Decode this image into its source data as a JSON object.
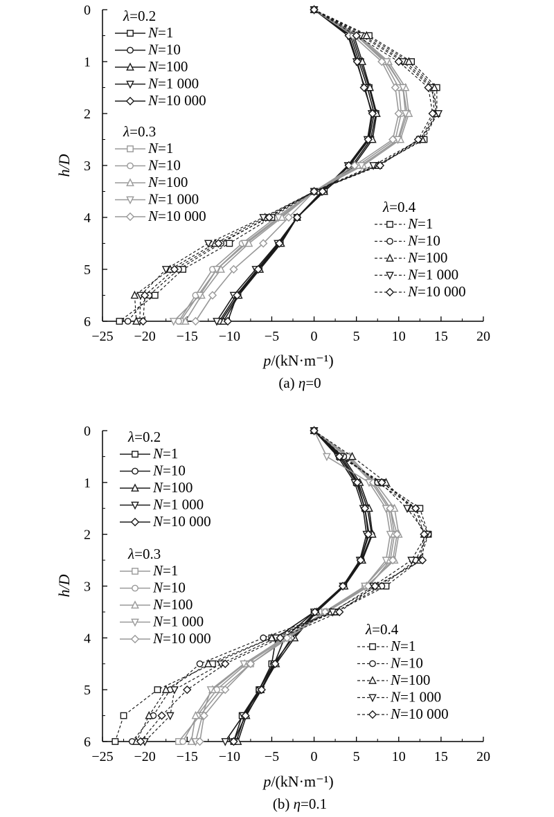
{
  "chart_data": [
    {
      "type": "line",
      "caption": "(a) η=0",
      "xlabel": "p/(kN·m⁻¹)",
      "ylabel": "h/D",
      "xlim": [
        -25,
        20
      ],
      "ylim": [
        0,
        6
      ],
      "y_inverted": true,
      "xticks": [
        -25,
        -20,
        -15,
        -10,
        -5,
        0,
        5,
        10,
        15,
        20
      ],
      "yticks": [
        0,
        1,
        2,
        3,
        4,
        5,
        6
      ],
      "series_labels": [
        "N=1",
        "N=10",
        "N=100",
        "N=1 000",
        "N=10 000"
      ],
      "markers": [
        "square",
        "circle",
        "triangle-up",
        "triangle-down",
        "diamond"
      ],
      "groups": [
        {
          "title": "λ=0.2",
          "style": "solid",
          "color": "#1a1a1a",
          "h": [
            0,
            0.5,
            1,
            1.5,
            2,
            2.5,
            3,
            3.5,
            4,
            4.5,
            5,
            5.5,
            6
          ],
          "series": [
            {
              "name": "N=1",
              "p": [
                0,
                4.5,
                5.5,
                6.5,
                7.3,
                6.7,
                4.5,
                1.2,
                -2.0,
                -4.0,
                -6.5,
                -9.0,
                -11.0
              ]
            },
            {
              "name": "N=10",
              "p": [
                0,
                4.3,
                5.3,
                6.3,
                7.1,
                6.5,
                4.2,
                1.0,
                -2.0,
                -4.2,
                -6.7,
                -9.2,
                -11.2
              ]
            },
            {
              "name": "N=100",
              "p": [
                0,
                4.7,
                5.7,
                6.6,
                7.4,
                6.9,
                4.7,
                1.2,
                -2.0,
                -3.9,
                -6.4,
                -8.9,
                -10.7
              ]
            },
            {
              "name": "N=1 000",
              "p": [
                0,
                4.0,
                5.0,
                6.0,
                6.8,
                6.3,
                4.0,
                0.9,
                -2.0,
                -4.3,
                -6.9,
                -9.5,
                -11.5
              ]
            },
            {
              "name": "N=10 000",
              "p": [
                0,
                4.1,
                5.1,
                5.9,
                6.9,
                6.4,
                4.1,
                1.0,
                -2.0,
                -4.1,
                -6.6,
                -9.1,
                -10.2
              ]
            }
          ]
        },
        {
          "title": "λ=0.3",
          "style": "solid",
          "color": "#999999",
          "h": [
            0,
            0.5,
            1,
            1.5,
            2,
            2.5,
            3,
            3.5,
            4,
            4.5,
            5,
            5.5,
            6
          ],
          "series": [
            {
              "name": "N=1",
              "p": [
                0,
                5.0,
                8.5,
                10.5,
                11.0,
                10.0,
                5.5,
                0.0,
                -4.0,
                -8.0,
                -11.5,
                -13.7,
                -15.8
              ]
            },
            {
              "name": "N=10",
              "p": [
                0,
                5.0,
                8.3,
                10.0,
                10.3,
                9.6,
                5.2,
                0.0,
                -4.5,
                -8.5,
                -12.0,
                -14.0,
                -16.0
              ]
            },
            {
              "name": "N=100",
              "p": [
                0,
                5.3,
                8.8,
                10.8,
                11.2,
                10.2,
                5.8,
                0.0,
                -3.8,
                -7.7,
                -11.0,
                -13.3,
                -15.2
              ]
            },
            {
              "name": "N=1 000",
              "p": [
                0,
                5.1,
                8.6,
                10.5,
                10.8,
                9.9,
                5.6,
                0.0,
                -4.2,
                -8.2,
                -11.5,
                -13.5,
                -16.6
              ]
            },
            {
              "name": "N=10 000",
              "p": [
                0,
                4.6,
                8.0,
                9.6,
                10.0,
                9.3,
                4.8,
                0.0,
                -3.0,
                -6.0,
                -9.5,
                -12.0,
                -14.0
              ]
            }
          ]
        },
        {
          "title": "λ=0.4",
          "style": "dashed",
          "color": "#1a1a1a",
          "h": [
            0,
            0.5,
            1,
            1.5,
            2,
            2.5,
            3,
            3.5,
            4,
            4.5,
            5,
            5.5,
            6
          ],
          "series": [
            {
              "name": "N=1",
              "p": [
                0,
                6.5,
                11.5,
                14.5,
                14.5,
                13.0,
                7.5,
                0.0,
                -5.0,
                -10.0,
                -15.5,
                -18.8,
                -23.0
              ]
            },
            {
              "name": "N=10",
              "p": [
                0,
                5.8,
                10.8,
                14.0,
                14.2,
                12.6,
                7.4,
                0.0,
                -5.5,
                -11.0,
                -16.0,
                -19.5,
                -22.0
              ]
            },
            {
              "name": "N=100",
              "p": [
                0,
                6.2,
                11.2,
                14.2,
                14.4,
                12.8,
                7.6,
                0.0,
                -5.8,
                -11.7,
                -17.0,
                -21.2,
                -21.0
              ]
            },
            {
              "name": "N=1 000",
              "p": [
                0,
                5.5,
                10.5,
                13.8,
                14.7,
                12.5,
                7.0,
                0.0,
                -6.0,
                -12.5,
                -17.5,
                -20.5,
                -20.6
              ]
            },
            {
              "name": "N=10 000",
              "p": [
                0,
                5.0,
                10.0,
                13.5,
                14.0,
                12.3,
                7.8,
                0.0,
                -5.3,
                -11.3,
                -16.5,
                -20.0,
                -20.2
              ]
            }
          ]
        }
      ]
    },
    {
      "type": "line",
      "caption": "(b) η=0.1",
      "xlabel": "p/(kN·m⁻¹)",
      "ylabel": "h/D",
      "xlim": [
        -25,
        20
      ],
      "ylim": [
        0,
        6
      ],
      "y_inverted": true,
      "xticks": [
        -25,
        -20,
        -15,
        -10,
        -5,
        0,
        5,
        10,
        15,
        20
      ],
      "yticks": [
        0,
        1,
        2,
        3,
        4,
        5,
        6
      ],
      "series_labels": [
        "N=1",
        "N=10",
        "N=100",
        "N=1 000",
        "N=10 000"
      ],
      "markers": [
        "square",
        "circle",
        "triangle-up",
        "triangle-down",
        "diamond"
      ],
      "groups": [
        {
          "title": "λ=0.2",
          "style": "solid",
          "color": "#1a1a1a",
          "h": [
            0,
            0.5,
            1,
            1.5,
            2,
            2.5,
            3,
            3.5,
            4,
            4.5,
            5,
            5.5,
            6
          ],
          "series": [
            {
              "name": "N=1",
              "p": [
                0,
                3.0,
                5.0,
                6.0,
                6.5,
                5.5,
                3.5,
                0.0,
                -4.5,
                -5.0,
                -6.5,
                -8.5,
                -9.5
              ]
            },
            {
              "name": "N=10",
              "p": [
                0,
                3.2,
                5.2,
                6.3,
                6.8,
                5.6,
                3.5,
                0.2,
                -2.5,
                -4.8,
                -6.5,
                -8.2,
                -9.2
              ]
            },
            {
              "name": "N=100",
              "p": [
                0,
                3.4,
                5.4,
                6.5,
                6.9,
                5.7,
                3.6,
                0.3,
                -2.3,
                -4.5,
                -6.3,
                -8.0,
                -9.0
              ]
            },
            {
              "name": "N=1 000",
              "p": [
                0,
                2.8,
                4.8,
                5.8,
                6.2,
                5.4,
                3.4,
                0.0,
                -3.5,
                -4.7,
                -6.3,
                -8.4,
                -10.5
              ]
            },
            {
              "name": "N=10 000",
              "p": [
                0,
                3.0,
                5.1,
                6.0,
                6.4,
                5.5,
                3.4,
                0.1,
                -2.7,
                -4.6,
                -6.2,
                -8.1,
                -9.5
              ]
            }
          ]
        },
        {
          "title": "λ=0.3",
          "style": "solid",
          "color": "#999999",
          "h": [
            0,
            0.5,
            1,
            1.5,
            2,
            2.5,
            3,
            3.5,
            4,
            4.5,
            5,
            5.5,
            6
          ],
          "series": [
            {
              "name": "N=1",
              "p": [
                0,
                4.0,
                7.0,
                9.0,
                9.5,
                9.0,
                6.5,
                1.5,
                -3.0,
                -7.5,
                -11.0,
                -13.5,
                -16.0
              ]
            },
            {
              "name": "N=10",
              "p": [
                0,
                3.8,
                6.8,
                8.8,
                9.3,
                8.8,
                6.0,
                1.4,
                -3.3,
                -8.0,
                -11.5,
                -13.8,
                -15.5
              ]
            },
            {
              "name": "N=100",
              "p": [
                0,
                4.2,
                7.2,
                9.5,
                10.0,
                9.5,
                6.2,
                1.5,
                -3.6,
                -8.2,
                -12.0,
                -14.0,
                -14.5
              ]
            },
            {
              "name": "N=1 000",
              "p": [
                0,
                1.5,
                6.5,
                8.5,
                9.0,
                8.5,
                6.0,
                1.2,
                -3.5,
                -8.3,
                -12.2,
                -13.2,
                -14.0
              ]
            },
            {
              "name": "N=10 000",
              "p": [
                0,
                4.0,
                7.0,
                9.0,
                9.8,
                9.3,
                6.4,
                1.3,
                -3.2,
                -7.5,
                -10.5,
                -13.0,
                -13.5
              ]
            }
          ]
        },
        {
          "title": "λ=0.4",
          "style": "dashed",
          "color": "#1a1a1a",
          "h": [
            0,
            0.5,
            1,
            1.5,
            2,
            2.5,
            3,
            3.5,
            4,
            4.5,
            5,
            5.5,
            6
          ],
          "series": [
            {
              "name": "N=1",
              "p": [
                0,
                3.0,
                8.0,
                12.5,
                13.5,
                12.5,
                8.5,
                2.5,
                -5.0,
                -12.0,
                -18.5,
                -22.5,
                -23.5
              ]
            },
            {
              "name": "N=10",
              "p": [
                0,
                3.5,
                7.5,
                12.0,
                13.5,
                12.0,
                8.0,
                2.5,
                -6.0,
                -13.5,
                -17.0,
                -19.0,
                -21.5
              ]
            },
            {
              "name": "N=100",
              "p": [
                0,
                4.5,
                8.5,
                11.5,
                13.0,
                12.5,
                7.5,
                2.0,
                -5.0,
                -12.5,
                -17.5,
                -19.5,
                -21.0
              ]
            },
            {
              "name": "N=1 000",
              "p": [
                0,
                3.2,
                7.8,
                11.0,
                13.3,
                11.5,
                7.0,
                2.2,
                -4.5,
                -11.0,
                -16.5,
                -17.0,
                -20.0
              ]
            },
            {
              "name": "N=10 000",
              "p": [
                0,
                3.0,
                8.0,
                12.0,
                13.0,
                12.8,
                7.2,
                3.0,
                -4.0,
                -10.5,
                -15.0,
                -18.0,
                -20.5
              ]
            }
          ]
        }
      ]
    }
  ]
}
